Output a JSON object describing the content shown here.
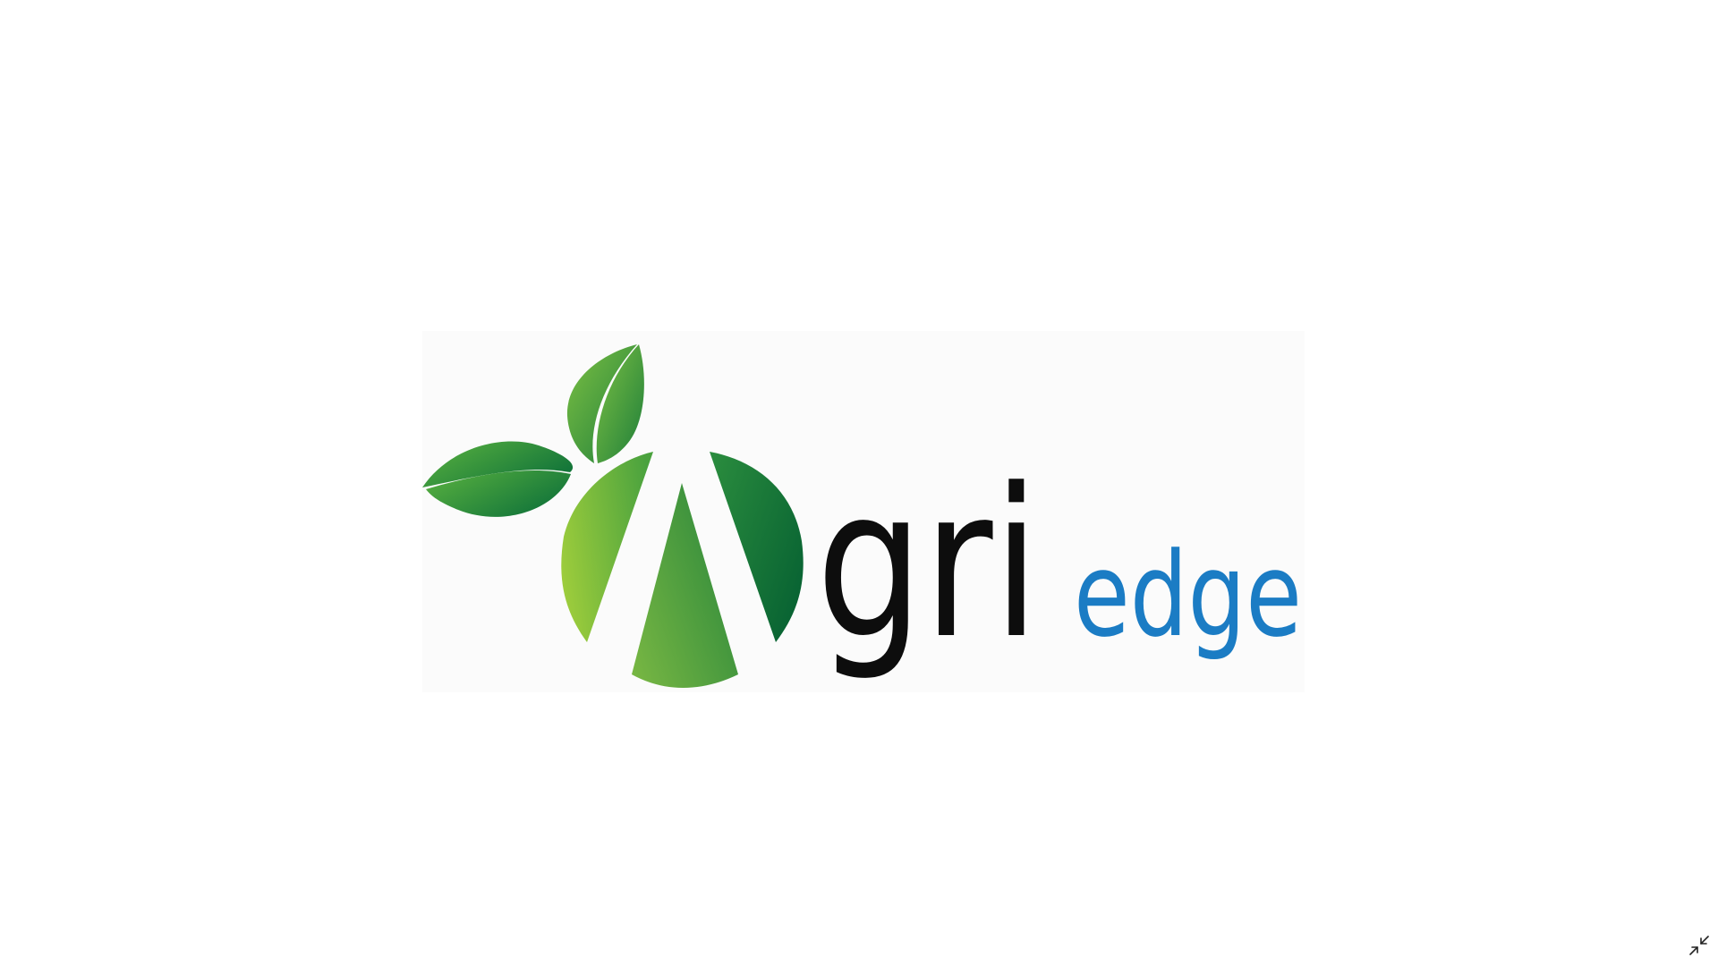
{
  "viewer": {
    "mode": "fullscreen-image",
    "background_color": "#ffffff"
  },
  "logo": {
    "wordmark_dark": "gri",
    "wordmark_accent": "edge",
    "dark_color": "#0d0d0d",
    "accent_color": "#1b7cc4",
    "leaf_colors": [
      "#8cc63f",
      "#3a9b3f",
      "#0a6b34"
    ]
  },
  "controls": {
    "exit_fullscreen_icon": "collapse-arrows-icon"
  }
}
